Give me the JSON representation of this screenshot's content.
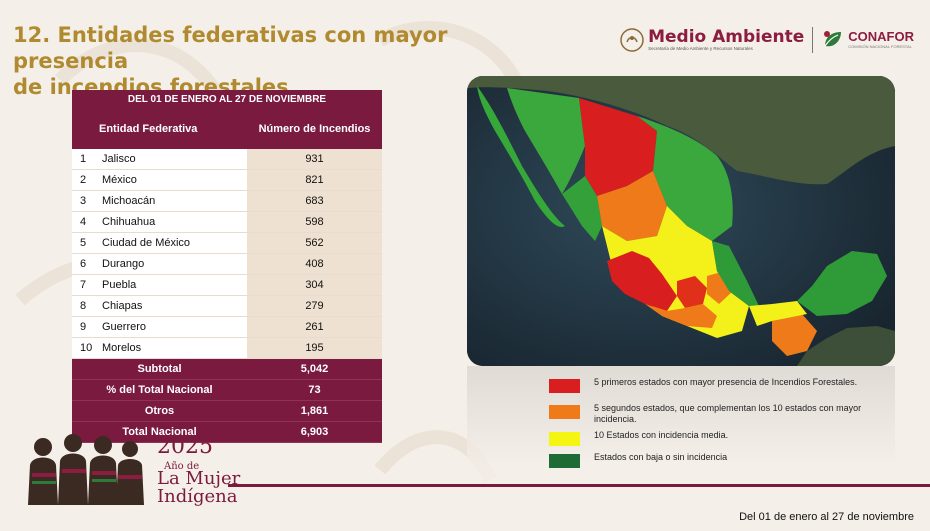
{
  "title_lines": [
    "12. Entidades federativas con mayor presencia",
    "de incendios forestales"
  ],
  "logos": {
    "medio_ambiente": "Medio Ambiente",
    "medio_ambiente_sub": "Secretaría de Medio Ambiente y Recursos Naturales",
    "conafor": "CONAFOR",
    "conafor_sub": "COMISIÓN NACIONAL FORESTAL"
  },
  "table": {
    "period": "DEL 01 DE ENERO AL 27 DE NOVIEMBRE",
    "col_entity": "Entidad Federativa",
    "col_count": "Número de Incendios",
    "rows": [
      {
        "rank": "1",
        "entity": "Jalisco",
        "count": "931"
      },
      {
        "rank": "2",
        "entity": "México",
        "count": "821"
      },
      {
        "rank": "3",
        "entity": "Michoacán",
        "count": "683"
      },
      {
        "rank": "4",
        "entity": "Chihuahua",
        "count": "598"
      },
      {
        "rank": "5",
        "entity": "Ciudad de México",
        "count": "562"
      },
      {
        "rank": "6",
        "entity": "Durango",
        "count": "408"
      },
      {
        "rank": "7",
        "entity": "Puebla",
        "count": "304"
      },
      {
        "rank": "8",
        "entity": "Chiapas",
        "count": "279"
      },
      {
        "rank": "9",
        "entity": "Guerrero",
        "count": "261"
      },
      {
        "rank": "10",
        "entity": "Morelos",
        "count": "195"
      }
    ],
    "summary": [
      {
        "label": "Subtotal",
        "value": "5,042"
      },
      {
        "label": "% del Total Nacional",
        "value": "73"
      },
      {
        "label": "Otros",
        "value": "1,861"
      },
      {
        "label": "Total Nacional",
        "value": "6,903"
      }
    ]
  },
  "legend": [
    {
      "color": "#d81e1e",
      "text": "5 primeros estados con mayor presencia de Incendios Forestales."
    },
    {
      "color": "#ee7a1a",
      "text": "5 segundos estados, que complementan los 10 estados con mayor incidencia."
    },
    {
      "color": "#f5f514",
      "text": "10 Estados con incidencia media."
    },
    {
      "color": "#1f6b35",
      "text": "Estados con baja o sin incidencia"
    }
  ],
  "footer": "Del 01 de enero al 27 de noviembre",
  "brand": {
    "year": "2025",
    "line1": "Año de",
    "line2": "La Mujer",
    "line3": "Indígena"
  },
  "colors": {
    "accent": "#7a1a3e",
    "title": "#b08a2f"
  }
}
